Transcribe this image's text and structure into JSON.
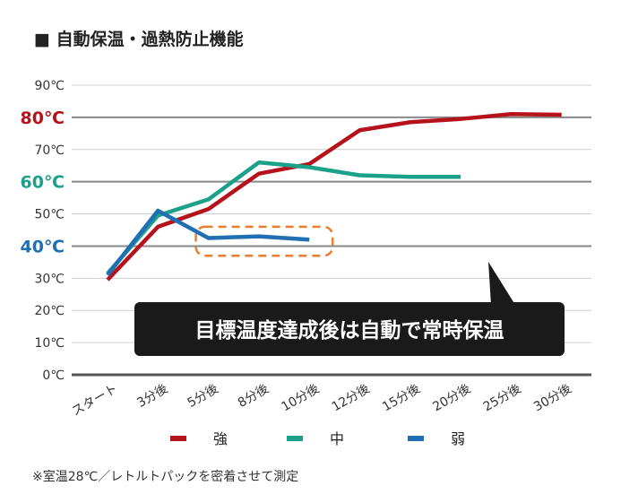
{
  "chart_data": {
    "type": "line",
    "title": "■ 自動保温・過熱防止機能",
    "categories": [
      "スタート",
      "3分後",
      "5分後",
      "8分後",
      "10分後",
      "12分後",
      "15分後",
      "20分後",
      "25分後",
      "30分後"
    ],
    "y_ticks": [
      {
        "value": 90,
        "label": "90℃",
        "emphasis": false
      },
      {
        "value": 80,
        "label": "80℃",
        "emphasis": true,
        "color": "#b5121b"
      },
      {
        "value": 70,
        "label": "70℃",
        "emphasis": false
      },
      {
        "value": 60,
        "label": "60℃",
        "emphasis": true,
        "color": "#1ba08a"
      },
      {
        "value": 50,
        "label": "50℃",
        "emphasis": false
      },
      {
        "value": 40,
        "label": "40℃",
        "emphasis": true,
        "color": "#1f6fb2"
      },
      {
        "value": 30,
        "label": "30℃",
        "emphasis": false
      },
      {
        "value": 20,
        "label": "20℃",
        "emphasis": false
      },
      {
        "value": 10,
        "label": "10℃",
        "emphasis": false
      },
      {
        "value": 0,
        "label": "0℃",
        "emphasis": false
      }
    ],
    "ylim": [
      0,
      90
    ],
    "grid": true,
    "series": [
      {
        "name": "強",
        "color": "#b5121b",
        "values": [
          29.5,
          46,
          51.5,
          62.5,
          65.5,
          76,
          78.5,
          79.5,
          81,
          80.8
        ]
      },
      {
        "name": "中",
        "color": "#1ba08a",
        "values": [
          31.5,
          49.5,
          54.5,
          66,
          64.5,
          62,
          61.5,
          61.5,
          null,
          null
        ]
      },
      {
        "name": "弱",
        "color": "#1f6fb2",
        "values": [
          31,
          51,
          42.5,
          43,
          42,
          null,
          null,
          null,
          null,
          null
        ]
      }
    ],
    "legend_position": "bottom",
    "annotation": "目標温度達成後は自動で常時保温",
    "footnote": "※室温28℃／レトルトパックを密着させて測定"
  }
}
